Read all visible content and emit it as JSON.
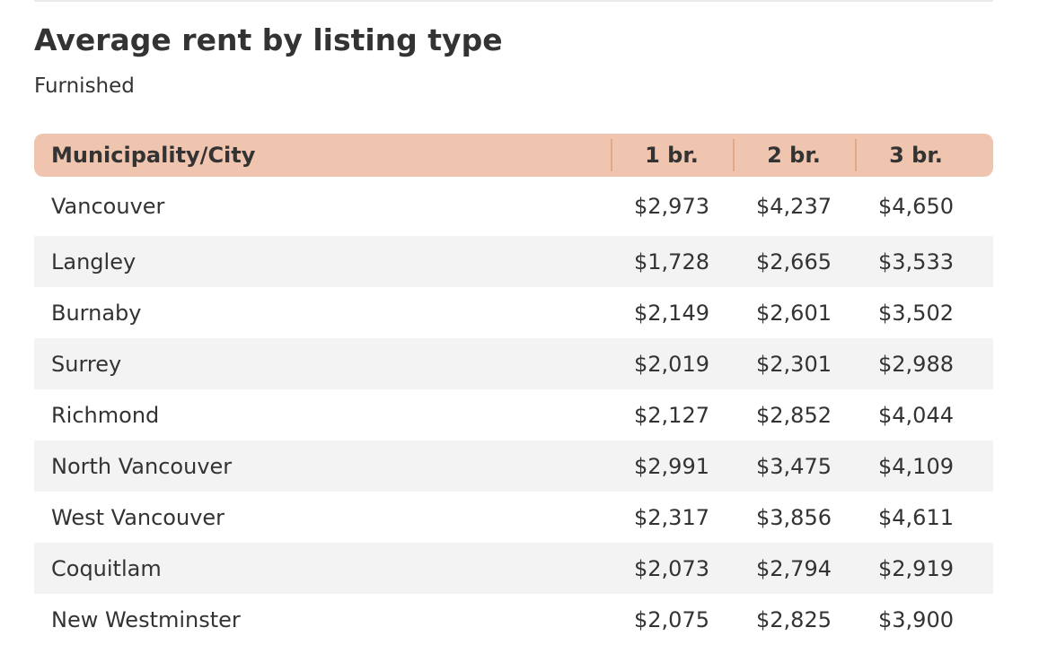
{
  "title": "Average rent by listing type",
  "subtitle": "Furnished",
  "colors": {
    "header_bg": "#f0c5af",
    "header_separator": "#dfa98c",
    "stripe_bg": "#f3f3f3",
    "text": "#333333"
  },
  "chart_data": {
    "type": "table",
    "title": "Average rent by listing type",
    "subtitle": "Furnished",
    "columns": [
      "Municipality/City",
      "1 br.",
      "2 br.",
      "3 br."
    ],
    "rows": [
      [
        "Vancouver",
        "$2,973",
        "$4,237",
        "$4,650"
      ],
      [
        "Langley",
        "$1,728",
        "$2,665",
        "$3,533"
      ],
      [
        "Burnaby",
        "$2,149",
        "$2,601",
        "$3,502"
      ],
      [
        "Surrey",
        "$2,019",
        "$2,301",
        "$2,988"
      ],
      [
        "Richmond",
        "$2,127",
        "$2,852",
        "$4,044"
      ],
      [
        "North Vancouver",
        "$2,991",
        "$3,475",
        "$4,109"
      ],
      [
        "West Vancouver",
        "$2,317",
        "$3,856",
        "$4,611"
      ],
      [
        "Coquitlam",
        "$2,073",
        "$2,794",
        "$2,919"
      ],
      [
        "New Westminster",
        "$2,075",
        "$2,825",
        "$3,900"
      ]
    ]
  }
}
